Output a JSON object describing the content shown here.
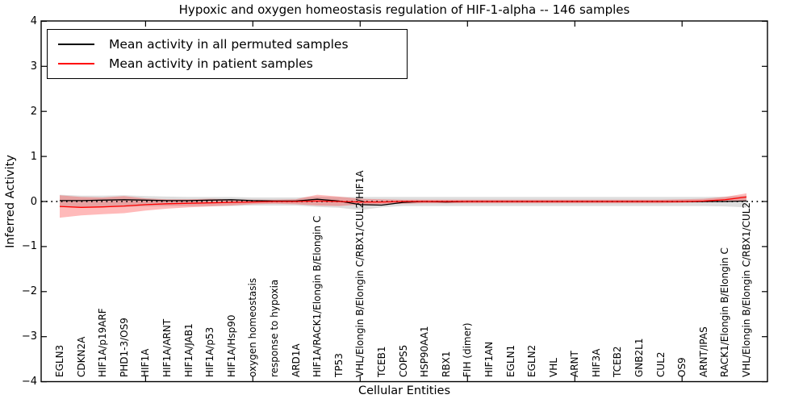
{
  "figure": {
    "title": "Hypoxic and oxygen homeostasis regulation of HIF-1-alpha -- 146 samples",
    "xlabel": "Cellular Entities",
    "ylabel": "Inferred Activity",
    "legend": [
      {
        "label": "Mean activity in all permuted samples",
        "color": "#000000"
      },
      {
        "label": "Mean activity in patient samples",
        "color": "#ff0000"
      }
    ]
  },
  "chart_data": {
    "type": "line",
    "title": "Hypoxic and oxygen homeostasis regulation of HIF-1-alpha -- 146 samples",
    "xlabel": "Cellular Entities",
    "ylabel": "Inferred Activity",
    "ylim": [
      -4,
      4
    ],
    "yticks": [
      4,
      3,
      2,
      1,
      0,
      -1,
      -2,
      -3,
      -4
    ],
    "xticks_at_categories": [
      5,
      10,
      15,
      20,
      25,
      30
    ],
    "grid": false,
    "legend_position": "upper left",
    "zero_line": {
      "y": 0,
      "style": "dotted",
      "color": "#000000"
    },
    "categories": [
      "EGLN3",
      "CDKN2A",
      "HIF1A/p19ARF",
      "PHD1-3/OS9",
      "HIF1A",
      "HIF1A/ARNT",
      "HIF1A/JAB1",
      "HIF1A/p53",
      "HIF1A/Hsp90",
      "oxygen homeostasis",
      "response to hypoxia",
      "ARD1A",
      "HIF1A/RACK1/Elongin B/Elongin C",
      "TP53",
      "VHL/Elongin B/Elongin C/RBX1/CUL2/HIF1A",
      "TCEB1",
      "COPS5",
      "HSP90AA1",
      "RBX1",
      "FIH (dimer)",
      "HIF1AN",
      "EGLN1",
      "EGLN2",
      "VHL",
      "ARNT",
      "HIF3A",
      "TCEB2",
      "GNB2L1",
      "CUL2",
      "OS9",
      "ARNT/IPAS",
      "RACK1/Elongin B/Elongin C",
      "VHL/Elongin B/Elongin C/RBX1/CUL2"
    ],
    "series": [
      {
        "name": "Mean activity in all permuted samples",
        "color": "#000000",
        "band_color": "rgba(0,0,0,0.13)",
        "values": [
          0.02,
          0.02,
          0.03,
          0.04,
          0.03,
          0.02,
          0.02,
          0.03,
          0.04,
          0.02,
          0.01,
          0.01,
          0.05,
          0.01,
          -0.07,
          -0.08,
          -0.02,
          0.0,
          -0.01,
          0.0,
          0.0,
          0.0,
          0.0,
          0.0,
          0.0,
          0.0,
          0.0,
          0.0,
          0.0,
          0.0,
          0.0,
          0.0,
          0.01
        ],
        "band_high": [
          0.15,
          0.13,
          0.13,
          0.14,
          0.12,
          0.11,
          0.1,
          0.1,
          0.1,
          0.09,
          0.09,
          0.09,
          0.11,
          0.1,
          0.1,
          0.1,
          0.1,
          0.1,
          0.1,
          0.1,
          0.1,
          0.1,
          0.1,
          0.1,
          0.1,
          0.1,
          0.1,
          0.1,
          0.1,
          0.1,
          0.1,
          0.11,
          0.13
        ],
        "band_low": [
          -0.13,
          -0.12,
          -0.12,
          -0.12,
          -0.11,
          -0.1,
          -0.1,
          -0.1,
          -0.1,
          -0.09,
          -0.09,
          -0.09,
          -0.12,
          -0.14,
          -0.19,
          -0.13,
          -0.1,
          -0.1,
          -0.1,
          -0.1,
          -0.1,
          -0.1,
          -0.1,
          -0.1,
          -0.1,
          -0.1,
          -0.1,
          -0.1,
          -0.1,
          -0.1,
          -0.1,
          -0.11,
          -0.13
        ]
      },
      {
        "name": "Mean activity in patient samples",
        "color": "#ff0000",
        "band_color": "rgba(255,0,0,0.27)",
        "values": [
          -0.11,
          -0.13,
          -0.12,
          -0.1,
          -0.07,
          -0.05,
          -0.04,
          -0.03,
          -0.02,
          -0.01,
          0.0,
          0.0,
          0.01,
          0.0,
          -0.01,
          -0.01,
          0.0,
          0.0,
          0.0,
          0.0,
          0.0,
          0.0,
          0.0,
          0.0,
          0.0,
          0.0,
          0.0,
          0.0,
          0.0,
          0.0,
          0.01,
          0.04,
          0.1
        ],
        "band_high": [
          0.14,
          0.1,
          0.09,
          0.12,
          0.07,
          0.05,
          0.05,
          0.06,
          0.05,
          0.04,
          0.04,
          0.05,
          0.15,
          0.11,
          0.06,
          0.05,
          0.04,
          0.04,
          0.04,
          0.04,
          0.04,
          0.04,
          0.04,
          0.04,
          0.04,
          0.04,
          0.04,
          0.04,
          0.04,
          0.05,
          0.06,
          0.1,
          0.18
        ],
        "band_low": [
          -0.36,
          -0.31,
          -0.28,
          -0.26,
          -0.2,
          -0.16,
          -0.13,
          -0.11,
          -0.09,
          -0.06,
          -0.05,
          -0.06,
          -0.09,
          -0.1,
          -0.07,
          -0.06,
          -0.05,
          -0.04,
          -0.04,
          -0.04,
          -0.04,
          -0.04,
          -0.04,
          -0.04,
          -0.04,
          -0.04,
          -0.04,
          -0.04,
          -0.04,
          -0.03,
          -0.02,
          0.0,
          0.02
        ]
      }
    ]
  }
}
